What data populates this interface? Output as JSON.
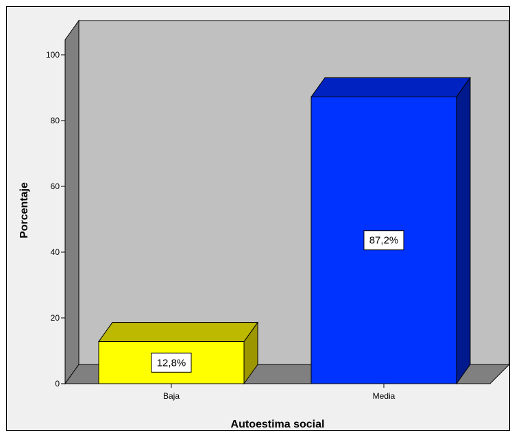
{
  "chart_data": {
    "type": "bar",
    "categories": [
      "Baja",
      "Media"
    ],
    "values": [
      12.8,
      87.2
    ],
    "data_labels": [
      "12,8%",
      "87,2%"
    ],
    "xlabel": "Autoestima social",
    "ylabel": "Porcentaje",
    "ylim": [
      0,
      100
    ],
    "yticks": [
      0,
      20,
      40,
      60,
      80,
      100
    ],
    "three_d": true,
    "grid": false,
    "legend": "none",
    "colors": {
      "bars": [
        "#ffff00",
        "#0033ff"
      ],
      "bar_tops": [
        "#bdb800",
        "#0022c0"
      ],
      "bar_sides": [
        "#9c9600",
        "#001a8e"
      ],
      "backwall": "#c0c0c0",
      "sidewall": "#808080",
      "floor": "#808080",
      "background": "#f0f0f0"
    }
  }
}
